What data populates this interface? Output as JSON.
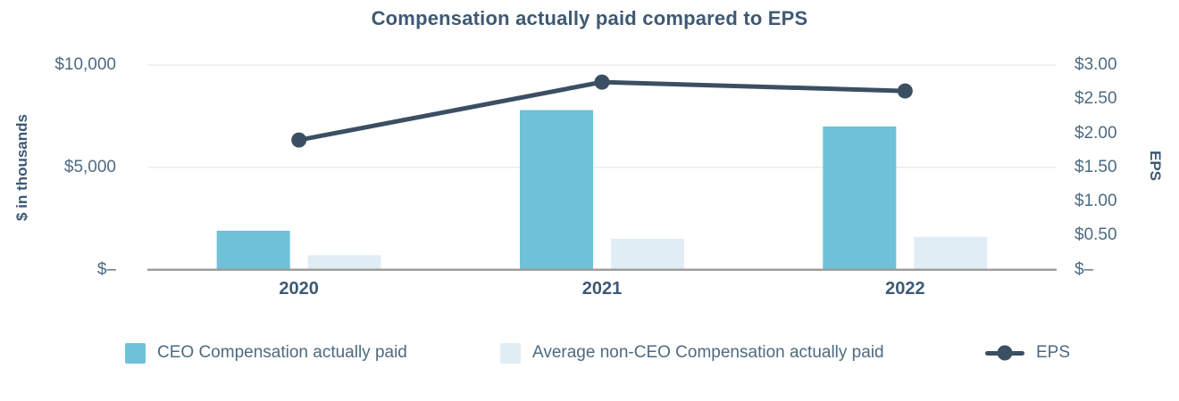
{
  "chart_data": {
    "type": "bar",
    "subtype": "grouped-bars-with-line-overlay",
    "title": "Compensation actually paid compared to EPS",
    "categories": [
      "2020",
      "2021",
      "2022"
    ],
    "series": [
      {
        "name": "CEO Compensation actually paid",
        "type": "bar",
        "axis": "left",
        "color": "#6ec1d7",
        "values": [
          1900,
          7800,
          7000
        ]
      },
      {
        "name": "Average non-CEO Compensation actually paid",
        "type": "bar",
        "axis": "left",
        "color": "#e0edf5",
        "values": [
          700,
          1500,
          1600
        ]
      },
      {
        "name": "EPS",
        "type": "line",
        "axis": "right",
        "color": "#3b4f63",
        "values": [
          1.9,
          2.75,
          2.62
        ]
      }
    ],
    "left_axis": {
      "label": "$ in thousands",
      "range": [
        0,
        10000
      ],
      "ticks": [
        {
          "label": "$10,000",
          "value": 10000
        },
        {
          "label": "$5,000",
          "value": 5000
        },
        {
          "label": "$–",
          "value": 0
        }
      ]
    },
    "right_axis": {
      "label": "EPS",
      "range": [
        0,
        3
      ],
      "ticks": [
        {
          "label": "$3.00",
          "value": 3.0
        },
        {
          "label": "$2.50",
          "value": 2.5
        },
        {
          "label": "$2.00",
          "value": 2.0
        },
        {
          "label": "$1.50",
          "value": 1.5
        },
        {
          "label": "$1.00",
          "value": 1.0
        },
        {
          "label": "$0.50",
          "value": 0.5
        },
        {
          "label": "$–",
          "value": 0
        }
      ]
    },
    "grid": {
      "horizontal_gridlines_at_left_ticks": true,
      "vertical_gridlines": false
    },
    "legend_position": "bottom"
  },
  "colors": {
    "ceo_bar": "#6ec1d7",
    "non_ceo_bar": "#e0edf5",
    "eps_line": "#3b4f63",
    "title_text": "#3e5974",
    "tick_text": "#4d6a80",
    "gridline": "#ededed",
    "axis_line": "#9b9b9b",
    "background": "#ffffff"
  }
}
